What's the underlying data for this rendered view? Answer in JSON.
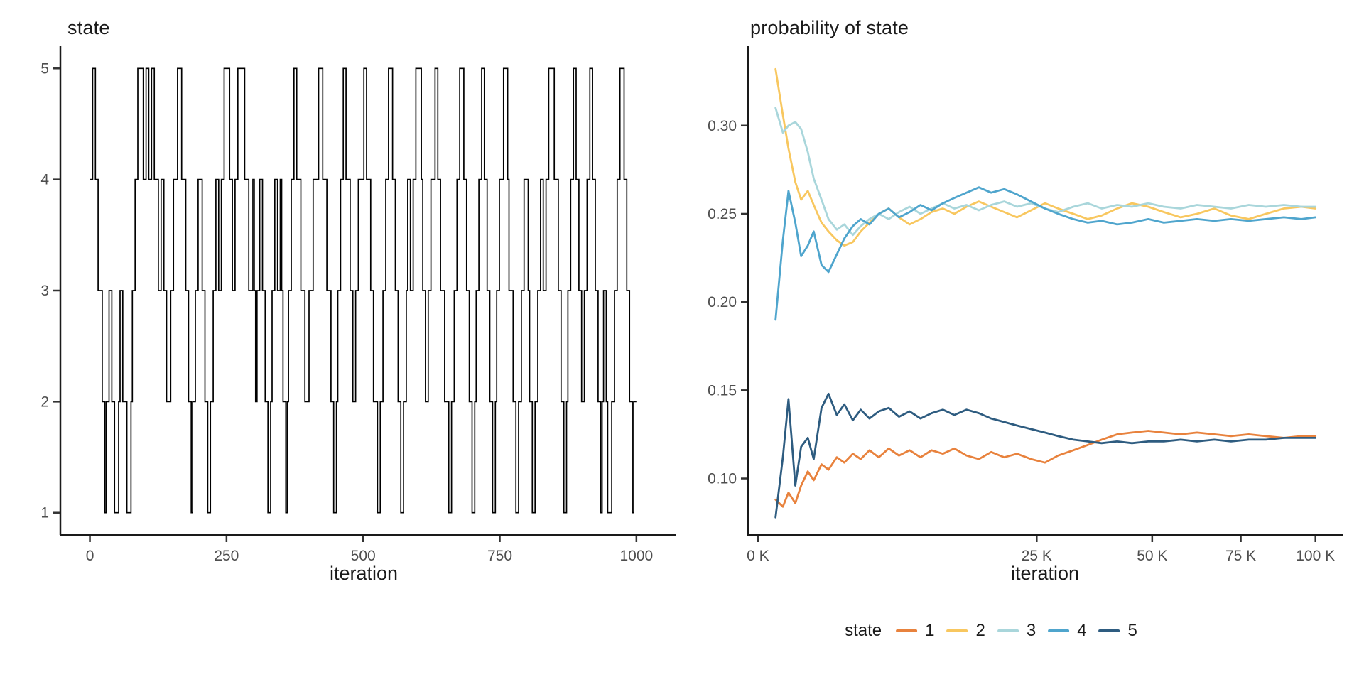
{
  "page": {
    "background": "#ffffff"
  },
  "style": {
    "axis_line_color": "#1a1a1a",
    "axis_text_color": "#4e4e4e",
    "title_color": "#1a1a1a",
    "trace_color": "#000000"
  },
  "legend": {
    "title": "state",
    "entries": [
      {
        "label": "1",
        "color": "#E8823D"
      },
      {
        "label": "2",
        "color": "#F8C75F"
      },
      {
        "label": "3",
        "color": "#A9D6DB"
      },
      {
        "label": "4",
        "color": "#4FA5CD"
      },
      {
        "label": "5",
        "color": "#2E5C80"
      }
    ]
  },
  "chart_data": [
    {
      "id": "state-trace",
      "type": "line",
      "subtype": "step",
      "title": "state",
      "xlabel": "iteration",
      "ylabel": "state",
      "x_ticks": [
        {
          "value": 0,
          "label": "0"
        },
        {
          "value": 250,
          "label": "250"
        },
        {
          "value": 500,
          "label": "500"
        },
        {
          "value": 750,
          "label": "750"
        },
        {
          "value": 1000,
          "label": "1000"
        }
      ],
      "y_ticks": [
        {
          "value": 1,
          "label": "1"
        },
        {
          "value": 2,
          "label": "2"
        },
        {
          "value": 3,
          "label": "3"
        },
        {
          "value": 4,
          "label": "4"
        },
        {
          "value": 5,
          "label": "5"
        }
      ],
      "xlim": [
        0,
        1000
      ],
      "ylim": [
        1,
        5
      ],
      "grid": false,
      "line_color": "#000000",
      "n_iterations": 1000,
      "state_sequence": "4455443332212233221112332221112334455554455445544433443322233444555444332212233444332211223344334455554433445555544433343233443322112334433432212334455444333222333444455544433322112334455444332233444455444332221122334455544332211223443344555543322334445544333222112233445554433221123344554433221123344455543332211223344432211223344334455554443322112334455443322334455443322123321112233445554433221 22"
    },
    {
      "id": "state-probability",
      "type": "line",
      "title": "probability of state",
      "xlabel": "iteration",
      "ylabel": "probability of state",
      "x_scale": "sqrt",
      "x_ticks": [
        {
          "value": 0,
          "label": "0 K"
        },
        {
          "value": 25000,
          "label": "25 K"
        },
        {
          "value": 50000,
          "label": "50 K"
        },
        {
          "value": 75000,
          "label": "75 K"
        },
        {
          "value": 100000,
          "label": "100 K"
        }
      ],
      "y_ticks": [
        {
          "value": 0.1,
          "label": "0.10"
        },
        {
          "value": 0.15,
          "label": "0.15"
        },
        {
          "value": 0.2,
          "label": "0.20"
        },
        {
          "value": 0.25,
          "label": "0.25"
        },
        {
          "value": 0.3,
          "label": "0.30"
        }
      ],
      "xlim": [
        0,
        100000
      ],
      "ylim": [
        0.068,
        0.345
      ],
      "grid": false,
      "x_thousands": [
        0.1,
        0.2,
        0.3,
        0.45,
        0.6,
        0.8,
        1,
        1.3,
        1.6,
        2,
        2.4,
        2.9,
        3.4,
        4,
        4.7,
        5.5,
        6.4,
        7.4,
        8.5,
        9.7,
        11,
        12.4,
        14,
        15.7,
        17.5,
        19.5,
        21.6,
        24,
        26.5,
        29,
        32,
        35,
        38,
        41.5,
        45,
        49,
        53,
        57.5,
        62,
        67,
        72,
        77.5,
        83,
        89,
        95,
        100
      ],
      "series": [
        {
          "name": "1",
          "color": "#E8823D",
          "values": [
            0.088,
            0.084,
            0.092,
            0.086,
            0.096,
            0.104,
            0.099,
            0.108,
            0.105,
            0.112,
            0.109,
            0.114,
            0.111,
            0.116,
            0.112,
            0.117,
            0.113,
            0.116,
            0.112,
            0.116,
            0.114,
            0.117,
            0.113,
            0.111,
            0.115,
            0.112,
            0.114,
            0.111,
            0.109,
            0.113,
            0.116,
            0.119,
            0.122,
            0.125,
            0.126,
            0.127,
            0.126,
            0.125,
            0.126,
            0.125,
            0.124,
            0.125,
            0.124,
            0.123,
            0.124,
            0.124
          ]
        },
        {
          "name": "2",
          "color": "#F8C75F",
          "values": [
            0.332,
            0.306,
            0.287,
            0.268,
            0.258,
            0.263,
            0.255,
            0.245,
            0.24,
            0.235,
            0.232,
            0.234,
            0.24,
            0.245,
            0.25,
            0.253,
            0.248,
            0.244,
            0.247,
            0.251,
            0.253,
            0.25,
            0.254,
            0.257,
            0.254,
            0.251,
            0.248,
            0.252,
            0.256,
            0.253,
            0.25,
            0.247,
            0.249,
            0.253,
            0.256,
            0.254,
            0.251,
            0.248,
            0.25,
            0.253,
            0.249,
            0.247,
            0.25,
            0.253,
            0.254,
            0.253
          ]
        },
        {
          "name": "3",
          "color": "#A9D6DB",
          "values": [
            0.31,
            0.296,
            0.3,
            0.302,
            0.298,
            0.285,
            0.27,
            0.258,
            0.247,
            0.241,
            0.244,
            0.238,
            0.243,
            0.247,
            0.25,
            0.247,
            0.251,
            0.254,
            0.25,
            0.253,
            0.256,
            0.253,
            0.255,
            0.252,
            0.255,
            0.257,
            0.254,
            0.256,
            0.253,
            0.251,
            0.254,
            0.256,
            0.253,
            0.255,
            0.254,
            0.256,
            0.254,
            0.253,
            0.255,
            0.254,
            0.253,
            0.255,
            0.254,
            0.255,
            0.254,
            0.254
          ]
        },
        {
          "name": "4",
          "color": "#4FA5CD",
          "values": [
            0.19,
            0.235,
            0.263,
            0.245,
            0.226,
            0.232,
            0.24,
            0.221,
            0.217,
            0.227,
            0.236,
            0.243,
            0.247,
            0.244,
            0.25,
            0.253,
            0.248,
            0.251,
            0.255,
            0.252,
            0.256,
            0.259,
            0.262,
            0.265,
            0.262,
            0.264,
            0.261,
            0.257,
            0.253,
            0.25,
            0.247,
            0.245,
            0.246,
            0.244,
            0.245,
            0.247,
            0.245,
            0.246,
            0.247,
            0.246,
            0.247,
            0.246,
            0.247,
            0.248,
            0.247,
            0.248
          ]
        },
        {
          "name": "5",
          "color": "#2E5C80",
          "values": [
            0.078,
            0.112,
            0.145,
            0.096,
            0.118,
            0.123,
            0.111,
            0.14,
            0.148,
            0.136,
            0.142,
            0.133,
            0.139,
            0.134,
            0.138,
            0.14,
            0.135,
            0.138,
            0.134,
            0.137,
            0.139,
            0.136,
            0.139,
            0.137,
            0.134,
            0.132,
            0.13,
            0.128,
            0.126,
            0.124,
            0.122,
            0.121,
            0.12,
            0.121,
            0.12,
            0.121,
            0.121,
            0.122,
            0.121,
            0.122,
            0.121,
            0.122,
            0.122,
            0.123,
            0.123,
            0.123
          ]
        }
      ],
      "legend_position": "bottom"
    }
  ]
}
